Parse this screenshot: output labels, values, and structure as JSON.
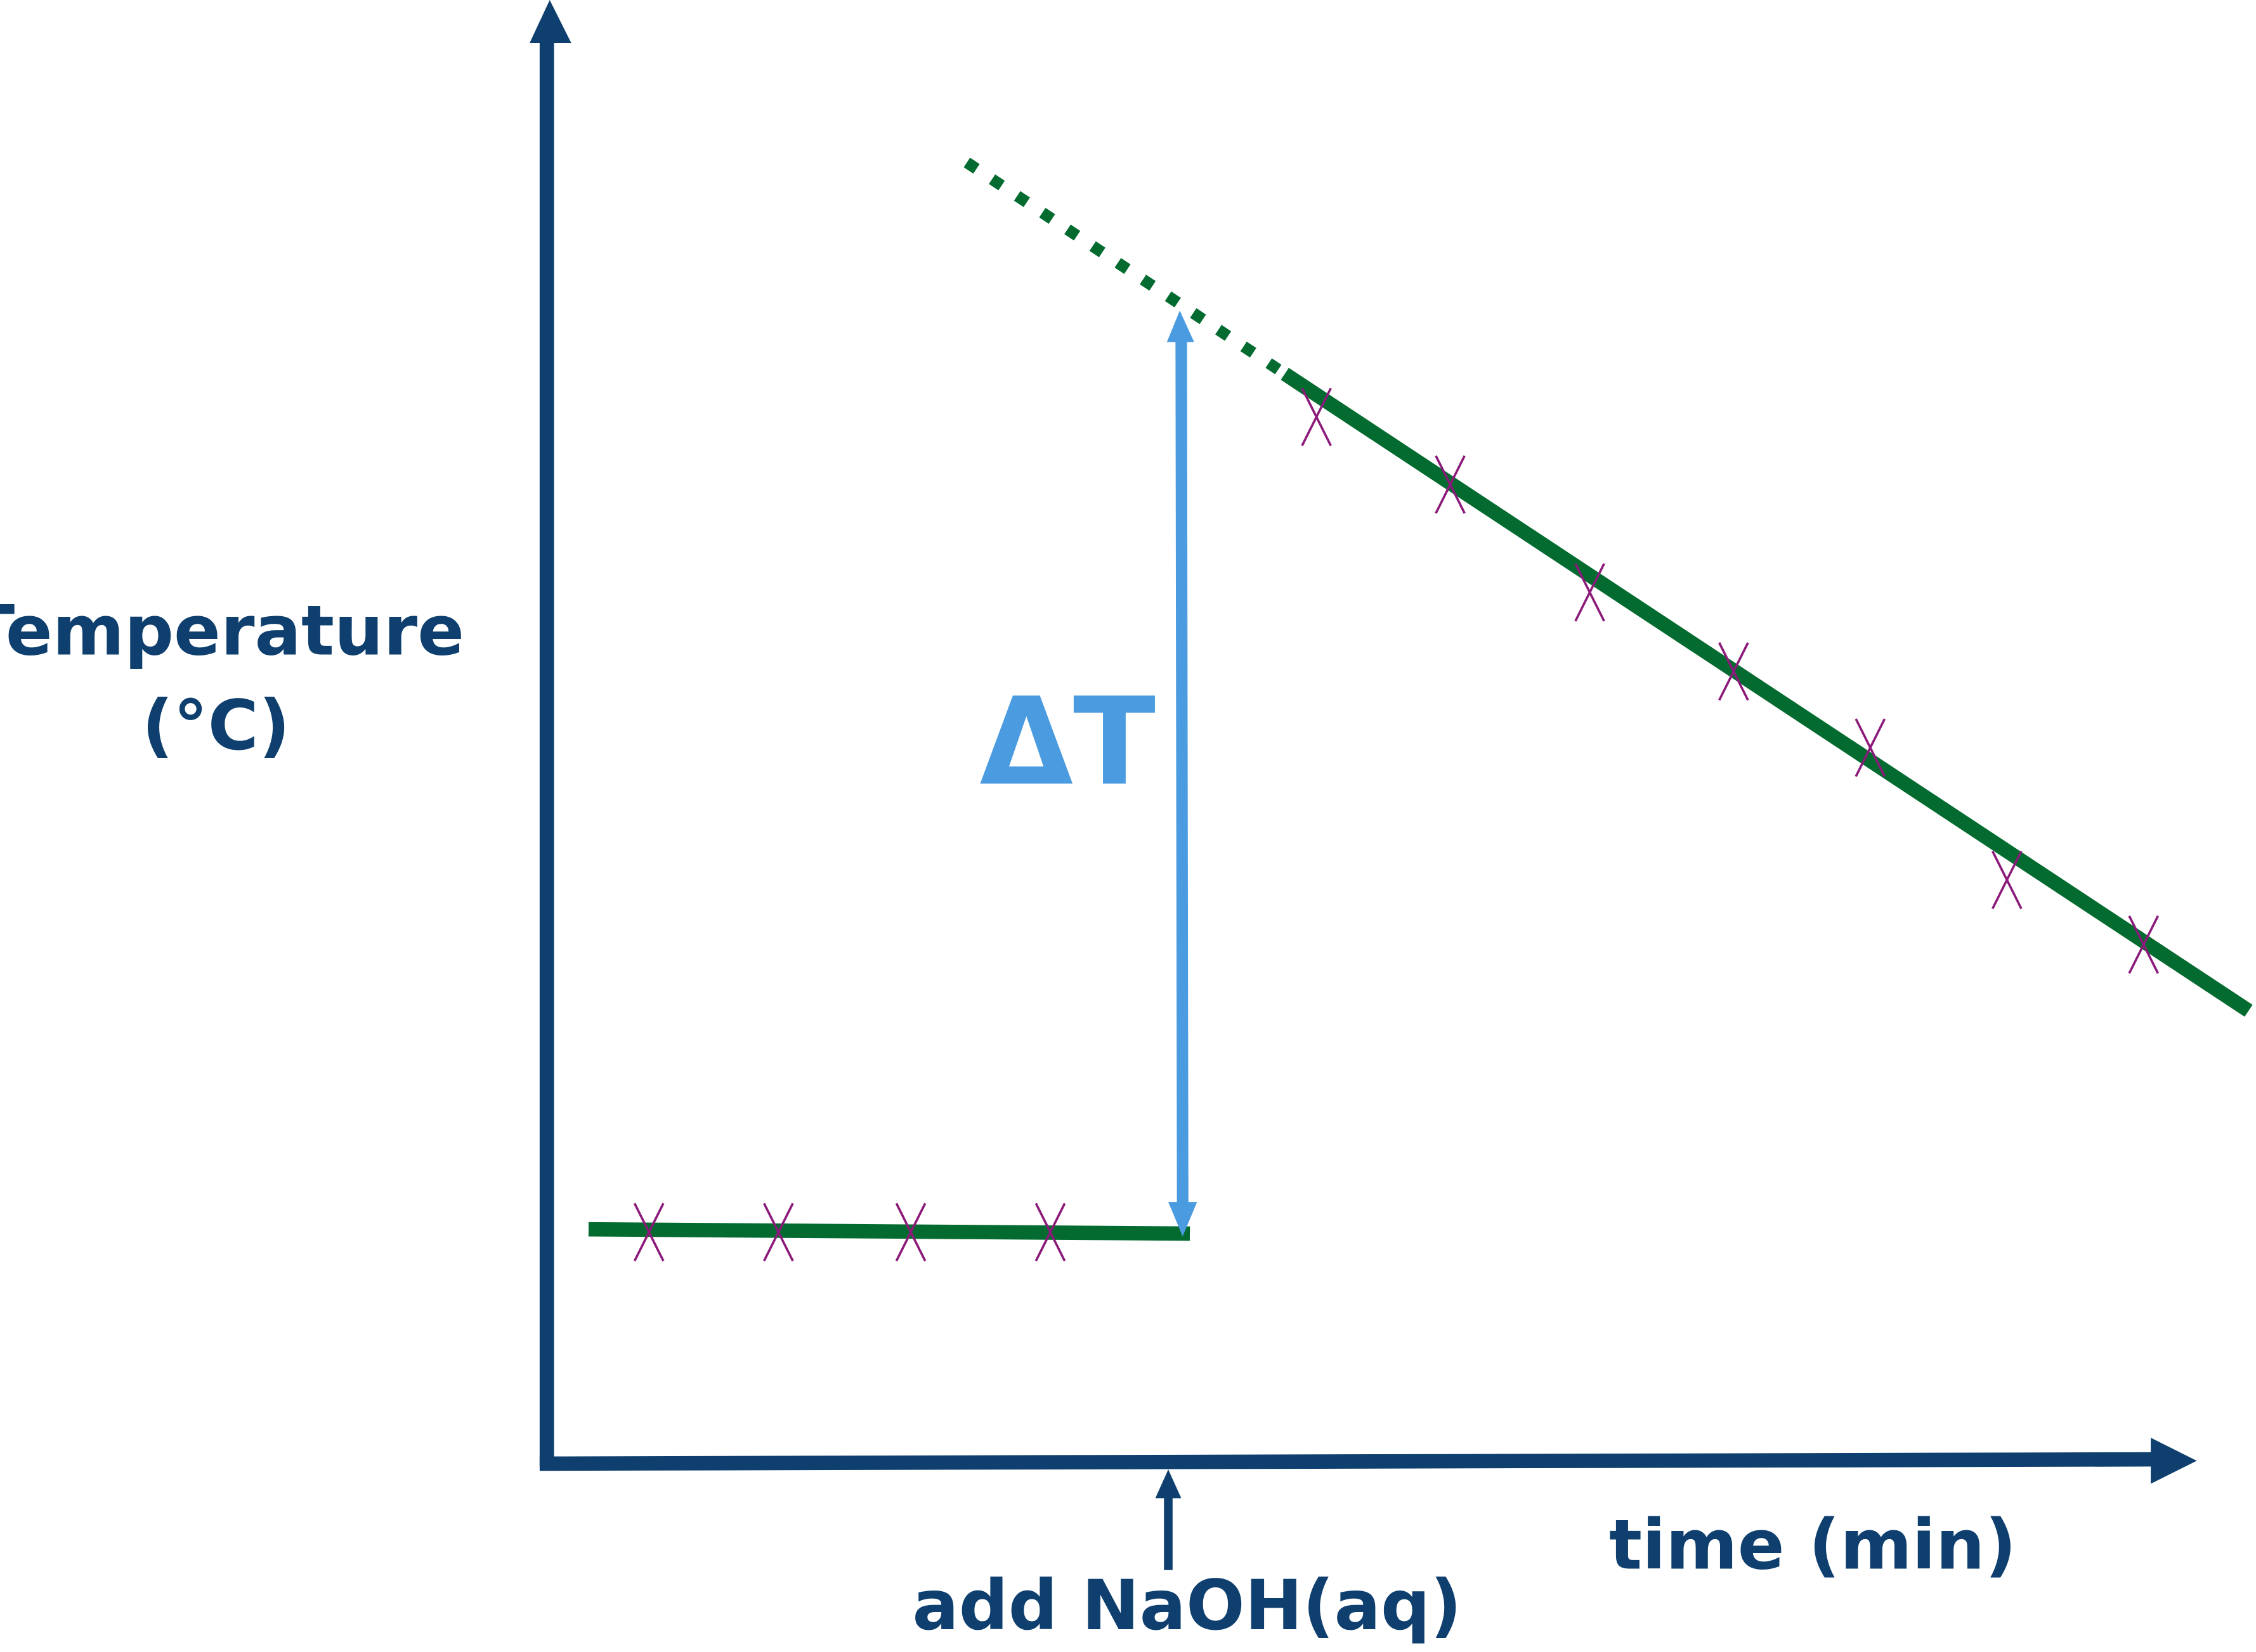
{
  "y_axis_label": {
    "line1": "Temperature",
    "line2": "(°C)"
  },
  "x_axis_label": "time (min)",
  "event_label": "add NaOH(aq)",
  "delta_label": "ΔT"
}
